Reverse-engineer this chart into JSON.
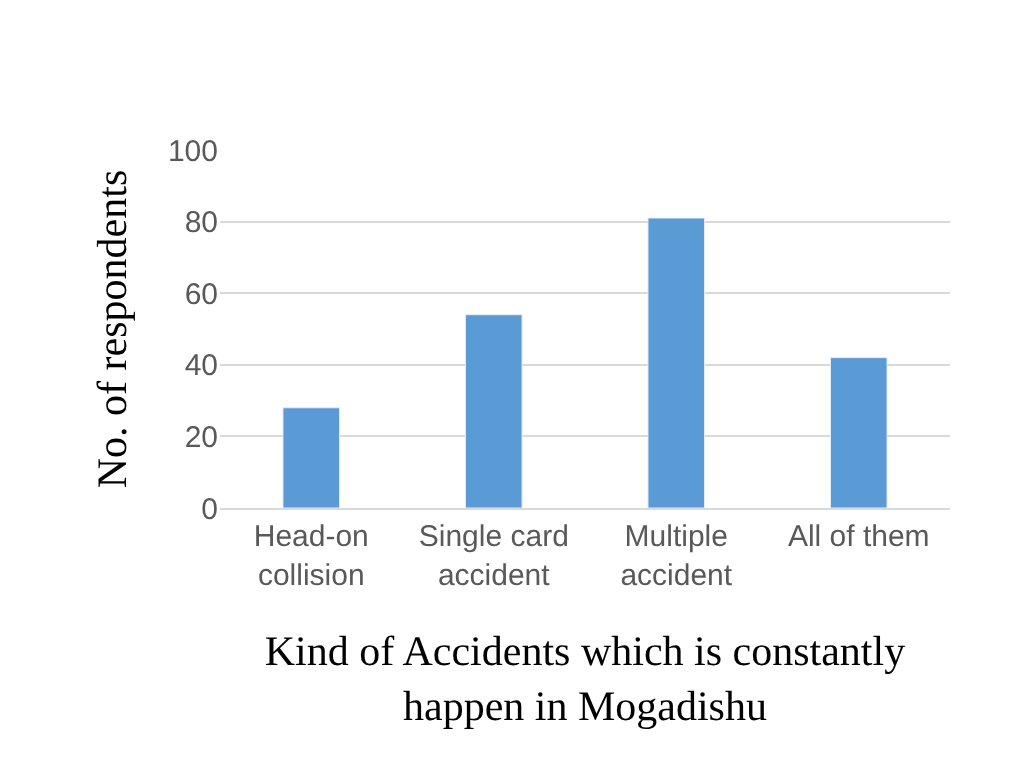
{
  "chart_data": {
    "type": "bar",
    "categories": [
      "Head-on collision",
      "Single card accident",
      "Multiple accident",
      "All of them"
    ],
    "values": [
      28,
      54,
      81,
      42
    ],
    "color": "#5b9bd5",
    "xlabel": "Kind of Accidents which is constantly happen in Mogadishu",
    "ylabel": "No. of respondents",
    "ylim": [
      0,
      100
    ],
    "yticks": [
      0,
      20,
      40,
      60,
      80,
      100
    ],
    "grid": "y",
    "legend": false
  }
}
